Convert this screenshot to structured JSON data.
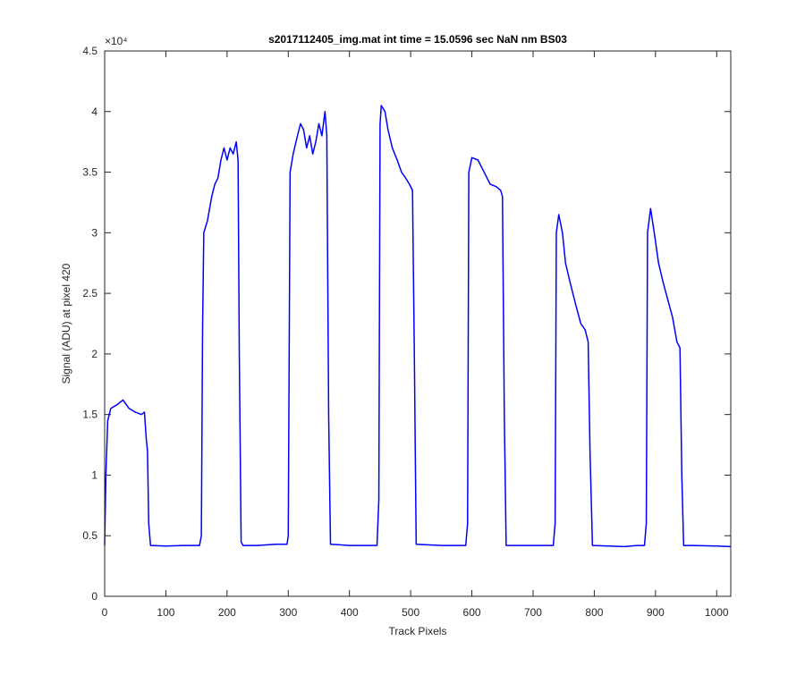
{
  "chart_data": {
    "type": "line",
    "title": "s2017112405_img.mat int time = 15.0596 sec  NaN nm BS03",
    "x_label": "Track Pixels",
    "y_label": "Signal (ADU) at pixel 420",
    "y_exponent_label": "×10⁴",
    "xlim": [
      0,
      1023
    ],
    "xticks": [
      0,
      100,
      200,
      300,
      400,
      500,
      600,
      700,
      800,
      900,
      1000
    ],
    "ylim": [
      0,
      4.5
    ],
    "yticks": [
      0,
      0.5,
      1,
      1.5,
      2,
      2.5,
      3,
      3.5,
      4,
      4.5
    ],
    "grid": false,
    "series": [
      {
        "color": "#0000ff",
        "x": [
          0,
          2,
          5,
          10,
          20,
          30,
          40,
          50,
          60,
          65,
          68,
          70,
          72,
          75,
          100,
          130,
          155,
          158,
          160,
          162,
          168,
          175,
          180,
          185,
          190,
          195,
          200,
          205,
          210,
          215,
          218,
          220,
          223,
          226,
          250,
          280,
          298,
          300,
          303,
          308,
          315,
          320,
          325,
          330,
          335,
          340,
          345,
          350,
          355,
          360,
          363,
          366,
          369,
          400,
          430,
          445,
          448,
          450,
          452,
          458,
          463,
          470,
          478,
          485,
          492,
          498,
          503,
          506,
          509,
          550,
          575,
          590,
          593,
          595,
          600,
          610,
          620,
          630,
          640,
          647,
          650,
          653,
          656,
          700,
          720,
          733,
          736,
          738,
          742,
          748,
          753,
          760,
          770,
          778,
          785,
          790,
          793,
          797,
          850,
          870,
          882,
          885,
          887,
          892,
          898,
          905,
          912,
          920,
          928,
          935,
          940,
          943,
          946,
          960,
          1000,
          1023
        ],
        "values": [
          0.42,
          1.0,
          1.45,
          1.55,
          1.58,
          1.62,
          1.55,
          1.52,
          1.5,
          1.52,
          1.3,
          1.2,
          0.6,
          0.42,
          0.415,
          0.42,
          0.42,
          0.5,
          2.2,
          3.0,
          3.1,
          3.3,
          3.4,
          3.45,
          3.6,
          3.7,
          3.6,
          3.7,
          3.65,
          3.75,
          3.6,
          2.0,
          0.45,
          0.42,
          0.42,
          0.43,
          0.43,
          0.5,
          3.5,
          3.65,
          3.8,
          3.9,
          3.85,
          3.7,
          3.8,
          3.65,
          3.75,
          3.9,
          3.8,
          4.0,
          3.8,
          1.5,
          0.43,
          0.42,
          0.42,
          0.42,
          0.8,
          3.9,
          4.05,
          4.0,
          3.85,
          3.7,
          3.6,
          3.5,
          3.45,
          3.4,
          3.35,
          2.0,
          0.43,
          0.42,
          0.42,
          0.42,
          0.6,
          3.5,
          3.62,
          3.6,
          3.5,
          3.4,
          3.38,
          3.35,
          3.3,
          1.5,
          0.42,
          0.42,
          0.42,
          0.42,
          0.6,
          3.0,
          3.15,
          3.0,
          2.75,
          2.6,
          2.4,
          2.25,
          2.2,
          2.1,
          1.2,
          0.42,
          0.41,
          0.42,
          0.42,
          0.6,
          3.0,
          3.2,
          3.0,
          2.75,
          2.6,
          2.45,
          2.3,
          2.1,
          2.05,
          1.0,
          0.42,
          0.42,
          0.415,
          0.41
        ]
      }
    ]
  }
}
